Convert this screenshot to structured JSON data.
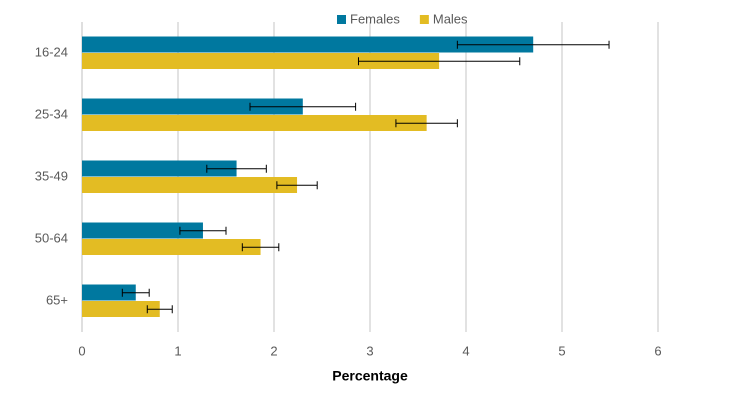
{
  "chart_data": {
    "type": "bar",
    "orientation": "horizontal",
    "x_label": "Percentage",
    "categories": [
      "16-24",
      "25-34",
      "35-49",
      "50-64",
      "65+"
    ],
    "series": [
      {
        "name": "Females",
        "color": "#00789f",
        "values": [
          4.7,
          2.3,
          1.61,
          1.26,
          0.56
        ],
        "errors": [
          0.79,
          0.55,
          0.31,
          0.24,
          0.14
        ]
      },
      {
        "name": "Males",
        "color": "#e3bc23",
        "values": [
          3.72,
          3.59,
          2.24,
          1.86,
          0.81
        ],
        "errors": [
          0.84,
          0.32,
          0.21,
          0.19,
          0.13
        ]
      }
    ],
    "xlim": [
      0,
      6
    ],
    "xticks": [
      0,
      1,
      2,
      3,
      4,
      5,
      6
    ],
    "grid": true,
    "legend": "top"
  }
}
